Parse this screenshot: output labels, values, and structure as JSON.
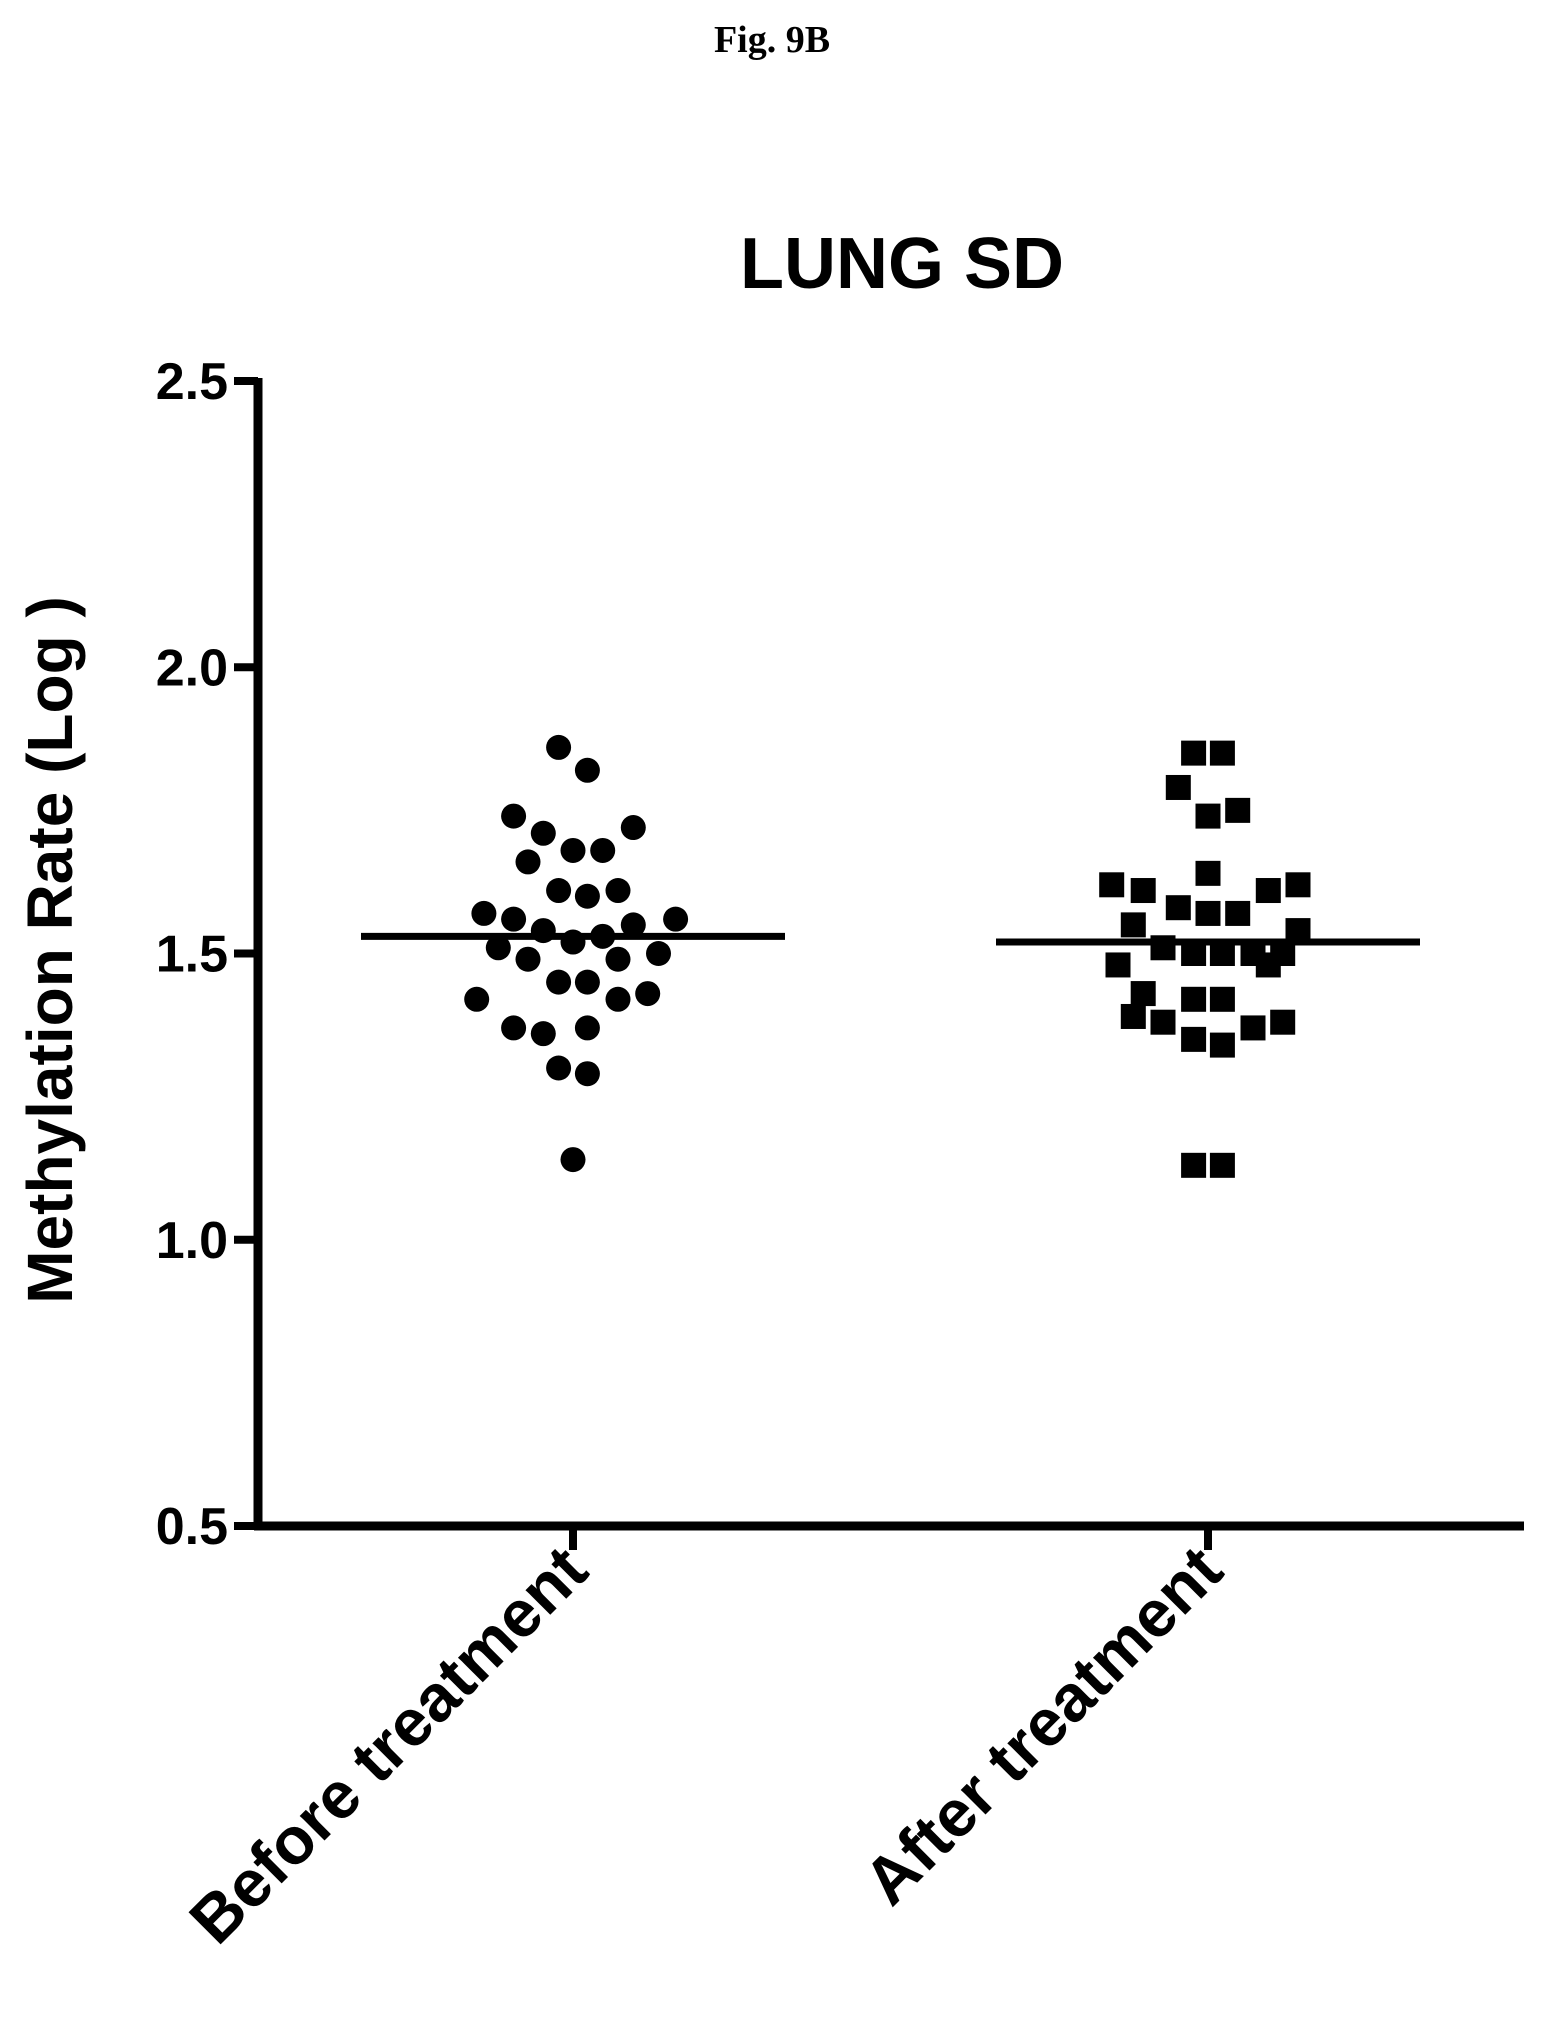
{
  "figure_label": "Fig. 9B",
  "chart_data": {
    "type": "scatter",
    "title": "LUNG SD",
    "xlabel": "",
    "ylabel": "Methylation Rate (Log )",
    "ylim": [
      0.5,
      2.5
    ],
    "yticks": [
      "0.5",
      "1.0",
      "1.5",
      "2.0",
      "2.5"
    ],
    "categories": [
      "Before treatment",
      "After treatment"
    ],
    "grid": false,
    "series": [
      {
        "category": "Before treatment",
        "marker": "circle",
        "color": "#000000",
        "median": 1.53,
        "points": [
          {
            "y": 1.86,
            "j": -0.16
          },
          {
            "y": 1.82,
            "j": 0.16
          },
          {
            "y": 1.74,
            "j": -0.66
          },
          {
            "y": 1.72,
            "j": 0.67
          },
          {
            "y": 1.71,
            "j": -0.33
          },
          {
            "y": 1.68,
            "j": 0.0
          },
          {
            "y": 1.68,
            "j": 0.33
          },
          {
            "y": 1.66,
            "j": -0.5
          },
          {
            "y": 1.61,
            "j": -0.16
          },
          {
            "y": 1.61,
            "j": 0.5
          },
          {
            "y": 1.6,
            "j": 0.16
          },
          {
            "y": 1.57,
            "j": -0.99
          },
          {
            "y": 1.56,
            "j": 1.14
          },
          {
            "y": 1.56,
            "j": -0.66
          },
          {
            "y": 1.55,
            "j": 0.67
          },
          {
            "y": 1.54,
            "j": -0.33
          },
          {
            "y": 1.53,
            "j": 0.33
          },
          {
            "y": 1.52,
            "j": 0.0
          },
          {
            "y": 1.51,
            "j": -0.83
          },
          {
            "y": 1.5,
            "j": 0.95
          },
          {
            "y": 1.49,
            "j": -0.5
          },
          {
            "y": 1.49,
            "j": 0.5
          },
          {
            "y": 1.45,
            "j": -0.16
          },
          {
            "y": 1.45,
            "j": 0.16
          },
          {
            "y": 1.43,
            "j": 0.83
          },
          {
            "y": 1.42,
            "j": -1.07
          },
          {
            "y": 1.42,
            "j": 0.5
          },
          {
            "y": 1.37,
            "j": -0.66
          },
          {
            "y": 1.37,
            "j": 0.16
          },
          {
            "y": 1.36,
            "j": -0.33
          },
          {
            "y": 1.3,
            "j": -0.16
          },
          {
            "y": 1.29,
            "j": 0.16
          },
          {
            "y": 1.14,
            "j": 0.0
          }
        ]
      },
      {
        "category": "After treatment",
        "marker": "square",
        "color": "#000000",
        "median": 1.52,
        "points": [
          {
            "y": 1.85,
            "j": -0.16
          },
          {
            "y": 1.85,
            "j": 0.16
          },
          {
            "y": 1.79,
            "j": -0.33
          },
          {
            "y": 1.75,
            "j": 0.33
          },
          {
            "y": 1.74,
            "j": 0.0
          },
          {
            "y": 1.64,
            "j": 0.0
          },
          {
            "y": 1.62,
            "j": -1.07
          },
          {
            "y": 1.62,
            "j": 1.0
          },
          {
            "y": 1.61,
            "j": -0.72
          },
          {
            "y": 1.61,
            "j": 0.67
          },
          {
            "y": 1.58,
            "j": -0.33
          },
          {
            "y": 1.57,
            "j": 0.0
          },
          {
            "y": 1.57,
            "j": 0.33
          },
          {
            "y": 1.55,
            "j": -0.83
          },
          {
            "y": 1.54,
            "j": 1.0
          },
          {
            "y": 1.51,
            "j": -0.5
          },
          {
            "y": 1.5,
            "j": -0.16
          },
          {
            "y": 1.5,
            "j": 0.16
          },
          {
            "y": 1.5,
            "j": 0.5
          },
          {
            "y": 1.5,
            "j": 0.83
          },
          {
            "y": 1.48,
            "j": -1.0
          },
          {
            "y": 1.48,
            "j": 0.67
          },
          {
            "y": 1.43,
            "j": -0.72
          },
          {
            "y": 1.42,
            "j": -0.16
          },
          {
            "y": 1.42,
            "j": 0.16
          },
          {
            "y": 1.39,
            "j": -0.83
          },
          {
            "y": 1.38,
            "j": -0.5
          },
          {
            "y": 1.38,
            "j": 0.83
          },
          {
            "y": 1.37,
            "j": 0.5
          },
          {
            "y": 1.35,
            "j": -0.16
          },
          {
            "y": 1.34,
            "j": 0.16
          },
          {
            "y": 1.13,
            "j": -0.16
          },
          {
            "y": 1.13,
            "j": 0.16
          }
        ]
      }
    ]
  }
}
